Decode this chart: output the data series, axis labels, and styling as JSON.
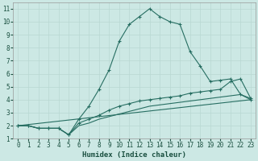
{
  "xlabel": "Humidex (Indice chaleur)",
  "xlim": [
    -0.5,
    23.5
  ],
  "ylim": [
    1,
    11.5
  ],
  "xticks": [
    0,
    1,
    2,
    3,
    4,
    5,
    6,
    7,
    8,
    9,
    10,
    11,
    12,
    13,
    14,
    15,
    16,
    17,
    18,
    19,
    20,
    21,
    22,
    23
  ],
  "yticks": [
    1,
    2,
    3,
    4,
    5,
    6,
    7,
    8,
    9,
    10,
    11
  ],
  "bg_color": "#cce8e4",
  "grid_color": "#b8d8d2",
  "line_color": "#276e62",
  "line1_x": [
    0,
    1,
    2,
    3,
    4,
    5,
    6,
    7,
    8,
    9,
    10,
    11,
    12,
    13,
    14,
    15,
    16,
    17,
    18,
    19,
    20,
    21,
    22,
    23
  ],
  "line1_y": [
    2.0,
    2.0,
    1.8,
    1.8,
    1.8,
    1.3,
    2.5,
    3.5,
    4.8,
    6.3,
    8.5,
    9.8,
    10.4,
    11.0,
    10.4,
    10.0,
    9.8,
    7.7,
    6.6,
    5.4,
    5.5,
    5.6,
    4.4,
    4.0
  ],
  "line2_x": [
    0,
    1,
    2,
    3,
    4,
    5,
    6,
    7,
    8,
    9,
    10,
    11,
    12,
    13,
    14,
    15,
    16,
    17,
    18,
    19,
    20,
    21,
    22,
    23
  ],
  "line2_y": [
    2.0,
    2.0,
    1.8,
    1.8,
    1.8,
    1.3,
    2.2,
    2.5,
    2.8,
    3.2,
    3.5,
    3.7,
    3.9,
    4.0,
    4.1,
    4.2,
    4.3,
    4.5,
    4.6,
    4.7,
    4.8,
    5.4,
    5.6,
    4.1
  ],
  "line3_x": [
    0,
    1,
    2,
    3,
    4,
    5,
    6,
    7,
    8,
    9,
    10,
    11,
    12,
    13,
    14,
    15,
    16,
    17,
    18,
    19,
    20,
    21,
    22,
    23
  ],
  "line3_y": [
    2.0,
    2.0,
    1.8,
    1.8,
    1.8,
    1.3,
    2.0,
    2.2,
    2.5,
    2.7,
    2.9,
    3.1,
    3.3,
    3.5,
    3.6,
    3.7,
    3.8,
    3.9,
    4.0,
    4.1,
    4.2,
    4.3,
    4.4,
    4.1
  ],
  "line4_x": [
    0,
    23
  ],
  "line4_y": [
    2.0,
    4.0
  ]
}
